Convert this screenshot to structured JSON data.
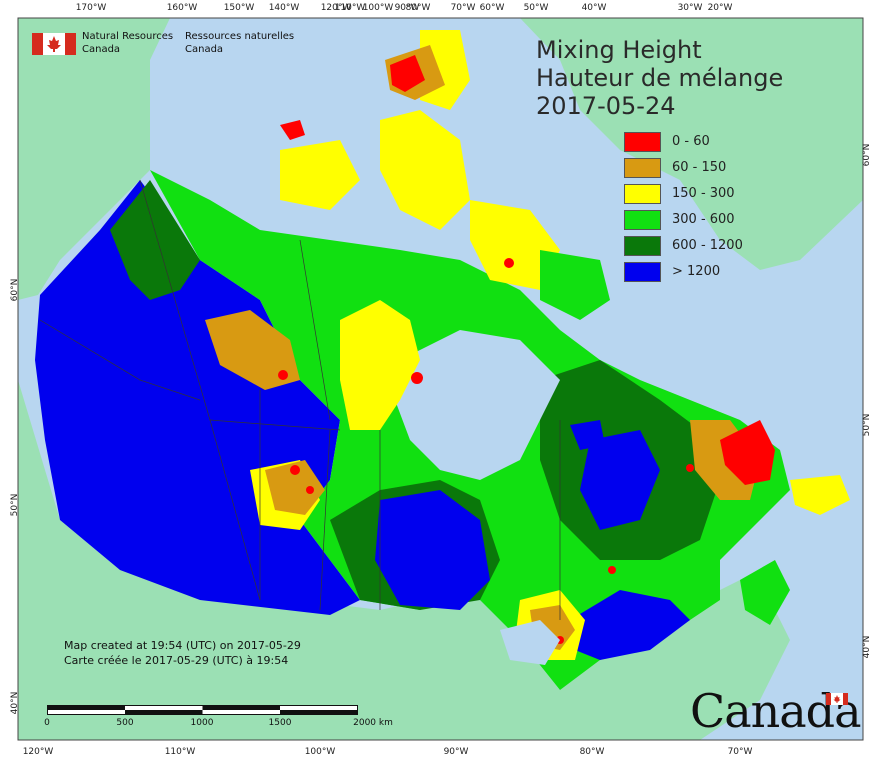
{
  "header": {
    "agency_en": [
      "Natural Resources",
      "Canada"
    ],
    "agency_fr": [
      "Ressources naturelles",
      "Canada"
    ]
  },
  "title": {
    "line1": "Mixing Height",
    "line2": "Hauteur de mélange",
    "date": "2017-05-24"
  },
  "legend": [
    {
      "label": "0 - 60",
      "color": "#ff0000"
    },
    {
      "label": "60 - 150",
      "color": "#d89a12"
    },
    {
      "label": "150 - 300",
      "color": "#ffff00"
    },
    {
      "label": "300 - 600",
      "color": "#11e011"
    },
    {
      "label": "600 - 1200",
      "color": "#0a780a"
    },
    {
      "label": "> 1200",
      "color": "#0000ee"
    }
  ],
  "credits": {
    "line_en": "Map created at 19:54 (UTC) on 2017-05-29",
    "line_fr": "Carte créée le 2017-05-29 (UTC) à 19:54"
  },
  "scale": {
    "labels": [
      "0",
      "500",
      "1000",
      "1500",
      "2000  km"
    ]
  },
  "wordmark": "Canada",
  "graticule": {
    "top": [
      "170°W",
      "160°W",
      "150°W",
      "140°W",
      "120°W",
      "110°W",
      "100°W",
      "90°W",
      "80°W",
      "70°W",
      "60°W",
      "50°W",
      "40°W",
      "30°W",
      "20°W"
    ],
    "bottom": [
      "120°W",
      "110°W",
      "100°W",
      "90°W",
      "80°W",
      "70°W"
    ],
    "left": [
      "60°N",
      "50°N",
      "40°N"
    ],
    "right": [
      "60°N",
      "50°N",
      "40°N"
    ]
  },
  "colors": {
    "ocean": "#b8d6f0",
    "land_outside": "#9be0b4",
    "boundary": "#333333"
  }
}
